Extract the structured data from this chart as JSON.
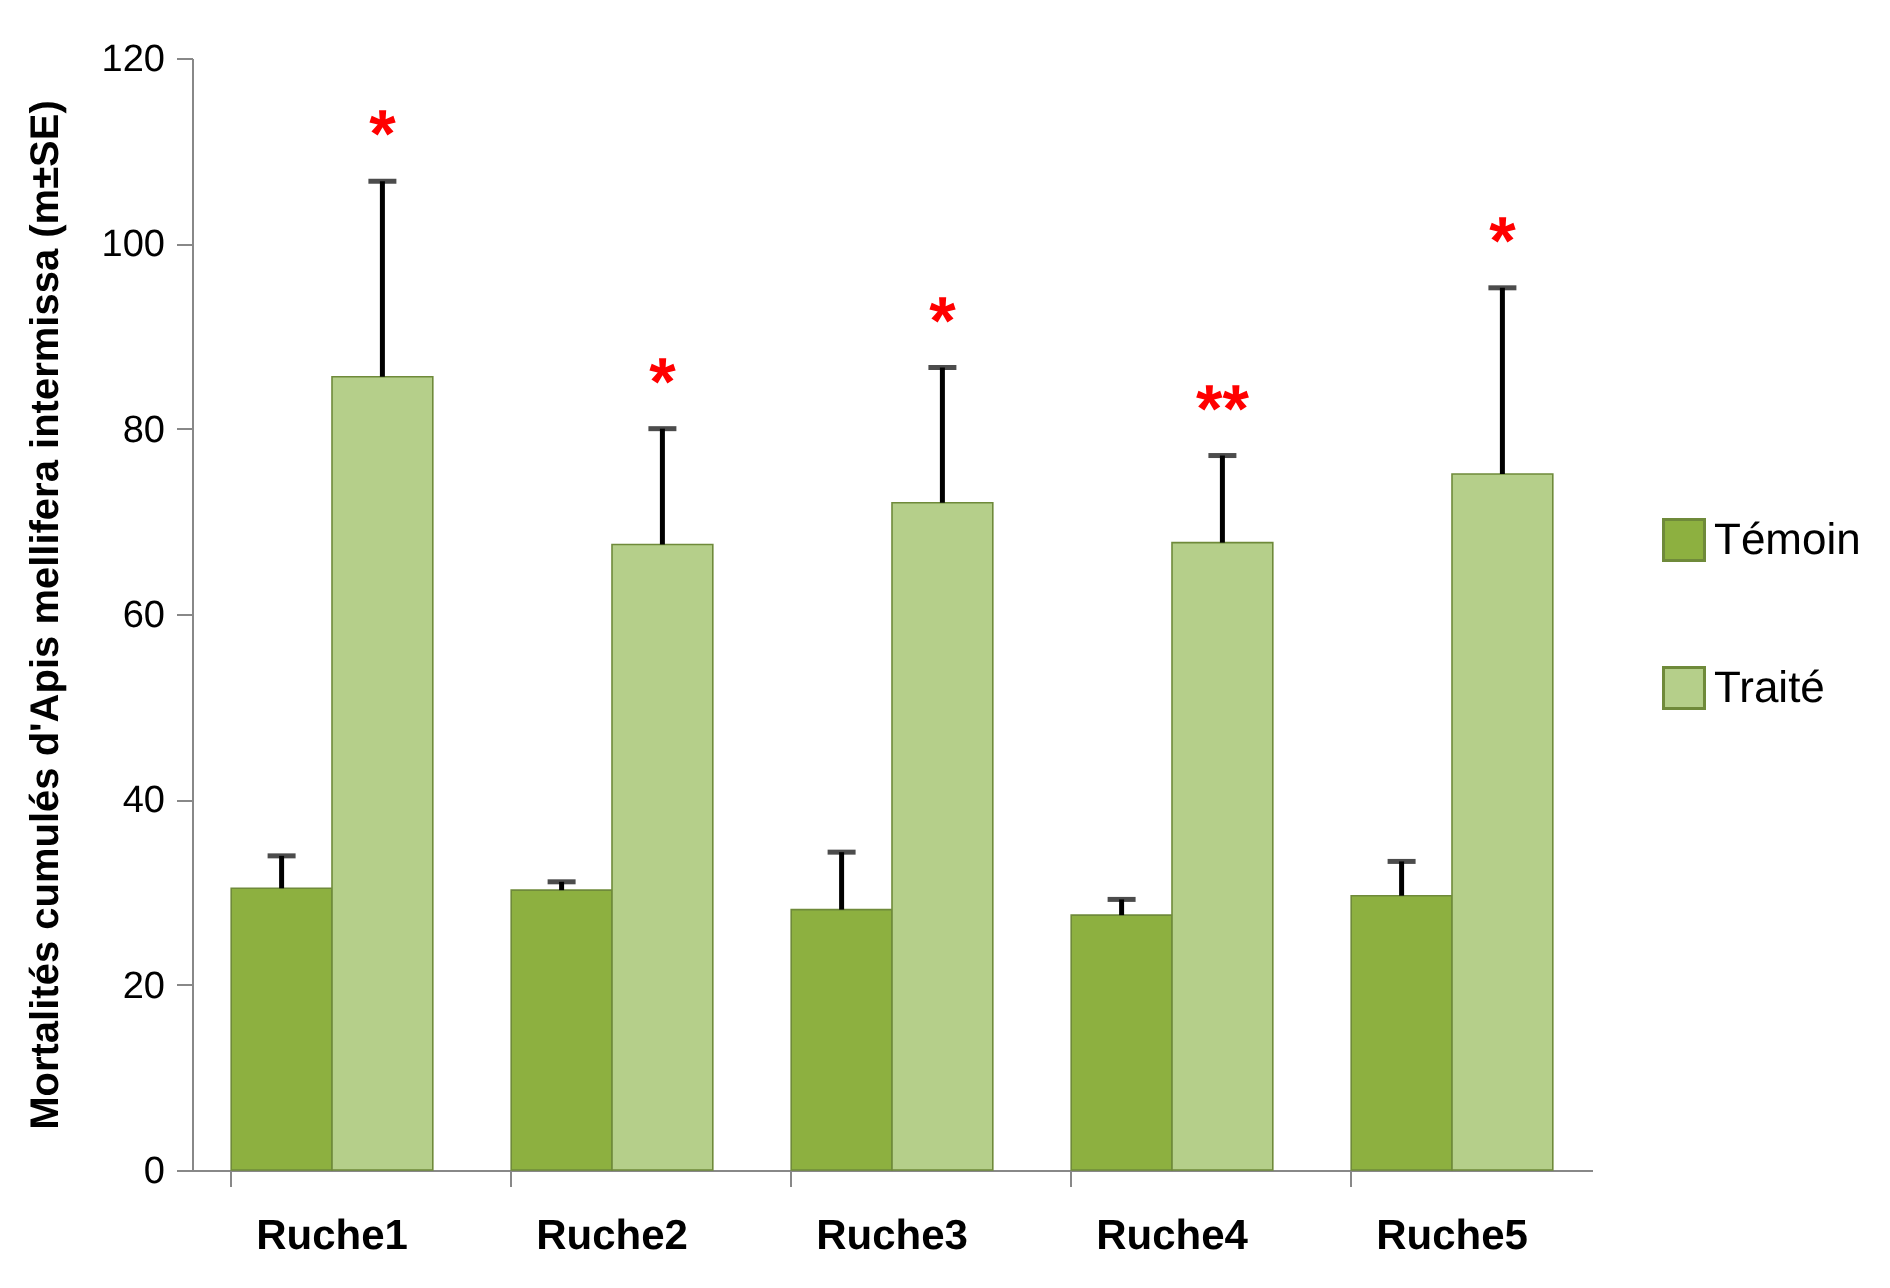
{
  "chart_data": {
    "type": "bar",
    "ylabel": "Mortalités cumulés  d'Apis mellifera intermissa (m±SE)",
    "categories": [
      "Ruche1",
      "Ruche2",
      "Ruche3",
      "Ruche4",
      "Ruche5"
    ],
    "series": [
      {
        "name": "Témoin",
        "color": "#8db040",
        "values": [
          30.4,
          30.2,
          28.1,
          27.5,
          29.6
        ],
        "errors": [
          [
            30.4,
            33.9
          ],
          [
            30.2,
            31.1
          ],
          [
            28.1,
            34.3
          ],
          [
            27.5,
            29.2
          ],
          [
            29.6,
            33.3
          ]
        ]
      },
      {
        "name": "Traité",
        "color": "#b5cf8a",
        "values": [
          85.6,
          67.5,
          72.0,
          67.7,
          75.1
        ],
        "errors": [
          [
            85.6,
            106.7
          ],
          [
            67.5,
            80.0
          ],
          [
            72.0,
            86.6
          ],
          [
            67.7,
            77.1
          ],
          [
            75.1,
            95.2
          ]
        ]
      }
    ],
    "ylim": [
      0,
      120
    ],
    "yticks": [
      0,
      20,
      40,
      60,
      80,
      100,
      120
    ],
    "legend": "right",
    "annotations": [
      "*",
      "*",
      "*",
      "**",
      "*"
    ]
  }
}
